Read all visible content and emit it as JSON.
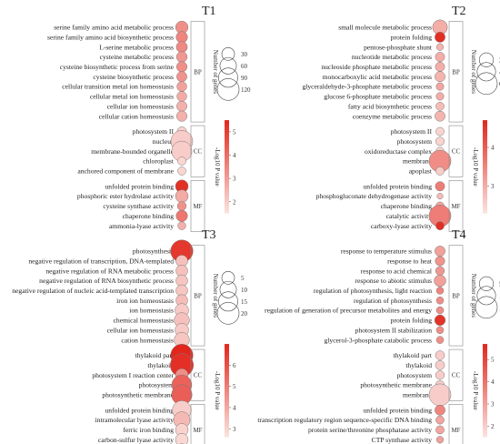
{
  "chart_data": [
    {
      "type": "scatter",
      "title": "T1",
      "size_legend_title": "Number of genes",
      "size_ticks": [
        30,
        60,
        90,
        120
      ],
      "size_max": 120,
      "color_legend_title": "-Log10 P value",
      "color_ticks": [
        2,
        3,
        4,
        5
      ],
      "color_range": [
        1.5,
        5.5
      ],
      "groups": [
        {
          "label": "BP",
          "terms": [
            {
              "term": "serine family amino acid metabolic process",
              "genes": 28,
              "log10p": 3.3
            },
            {
              "term": "serine family amino acid biosynthetic process",
              "genes": 22,
              "log10p": 3.5
            },
            {
              "term": "L-serine metabolic process",
              "genes": 20,
              "log10p": 3.4
            },
            {
              "term": "cysteine metabolic process",
              "genes": 18,
              "log10p": 3.1
            },
            {
              "term": "cysteine biosynthetic process from serine",
              "genes": 17,
              "log10p": 3.3
            },
            {
              "term": "cysteine biosynthetic process",
              "genes": 16,
              "log10p": 3.2
            },
            {
              "term": "cellular transition metal ion homeostasis",
              "genes": 14,
              "log10p": 2.9
            },
            {
              "term": "cellular metal ion homeostasis",
              "genes": 14,
              "log10p": 2.7
            },
            {
              "term": "cellular ion homeostasis",
              "genes": 16,
              "log10p": 2.6
            },
            {
              "term": "cellular cation homeostasis",
              "genes": 17,
              "log10p": 2.6
            }
          ]
        },
        {
          "label": "CC",
          "terms": [
            {
              "term": "photosystem II",
              "genes": 12,
              "log10p": 1.9
            },
            {
              "term": "nucleus",
              "genes": 120,
              "log10p": 2.0
            },
            {
              "term": "membrane-bounded organelle",
              "genes": 100,
              "log10p": 2.0
            },
            {
              "term": "chloroplast",
              "genes": 8,
              "log10p": 1.8
            },
            {
              "term": "anchored component of membrane",
              "genes": 8,
              "log10p": 1.8
            }
          ]
        },
        {
          "label": "MF",
          "terms": [
            {
              "term": "unfolded protein binding",
              "genes": 30,
              "log10p": 5.3
            },
            {
              "term": "phosphoric ester hydrolase activity",
              "genes": 30,
              "log10p": 2.7
            },
            {
              "term": "cysteine synthase activity",
              "genes": 10,
              "log10p": 3.2
            },
            {
              "term": "chaperone binding",
              "genes": 22,
              "log10p": 3.8
            },
            {
              "term": "ammonia-lyase activity",
              "genes": 7,
              "log10p": 2.6
            }
          ]
        }
      ]
    },
    {
      "type": "scatter",
      "title": "T2",
      "size_legend_title": "Number of genes",
      "size_ticks": [
        200,
        400,
        600
      ],
      "size_max": 600,
      "color_legend_title": "-Log10 P value",
      "color_ticks": [
        3,
        4
      ],
      "color_range": [
        2.3,
        4.7
      ],
      "groups": [
        {
          "label": "BP",
          "terms": [
            {
              "term": "small molecule metabolic process",
              "genes": 230,
              "log10p": 3.0
            },
            {
              "term": "protein folding",
              "genes": 80,
              "log10p": 4.6
            },
            {
              "term": "pentose-phosphate shunt",
              "genes": 20,
              "log10p": 2.9
            },
            {
              "term": "nucleotide metabolic process",
              "genes": 60,
              "log10p": 3.0
            },
            {
              "term": "nucleoside phosphate metabolic process",
              "genes": 60,
              "log10p": 3.0
            },
            {
              "term": "monocarboxylic acid metabolic process",
              "genes": 80,
              "log10p": 2.9
            },
            {
              "term": "glyceraldehyde-3-phosphate metabolic process",
              "genes": 30,
              "log10p": 3.1
            },
            {
              "term": "glucose 6-phosphate metabolic process",
              "genes": 30,
              "log10p": 3.0
            },
            {
              "term": "fatty acid biosynthetic process",
              "genes": 40,
              "log10p": 2.8
            },
            {
              "term": "coenzyme metabolic process",
              "genes": 80,
              "log10p": 2.9
            }
          ]
        },
        {
          "label": "CC",
          "terms": [
            {
              "term": "photosystem II",
              "genes": 40,
              "log10p": 2.5
            },
            {
              "term": "photosystem",
              "genes": 45,
              "log10p": 2.5
            },
            {
              "term": "oxidoreductase complex",
              "genes": 35,
              "log10p": 2.5
            },
            {
              "term": "membrane",
              "genes": 600,
              "log10p": 3.4
            },
            {
              "term": "apoplast",
              "genes": 40,
              "log10p": 2.6
            }
          ]
        },
        {
          "label": "MF",
          "terms": [
            {
              "term": "unfolded protein binding",
              "genes": 60,
              "log10p": 3.6
            },
            {
              "term": "phosphogluconate dehydrogenase activity",
              "genes": 10,
              "log10p": 2.8
            },
            {
              "term": "chaperone binding",
              "genes": 40,
              "log10p": 3.1
            },
            {
              "term": "catalytic activity",
              "genes": 600,
              "log10p": 3.6
            },
            {
              "term": "carboxy-lyase activity",
              "genes": 40,
              "log10p": 4.6
            }
          ]
        }
      ]
    },
    {
      "type": "scatter",
      "title": "T3",
      "size_legend_title": "Number of genes",
      "size_ticks": [
        5,
        10,
        15,
        20
      ],
      "size_max": 20,
      "color_legend_title": "-Log10 P value",
      "color_ticks": [
        3,
        4,
        5,
        6
      ],
      "color_range": [
        2.6,
        7.0
      ],
      "groups": [
        {
          "label": "BP",
          "terms": [
            {
              "term": "photosynthesis",
              "genes": 21,
              "log10p": 6.6
            },
            {
              "term": "negative regulation of transcription, DNA-templated",
              "genes": 4,
              "log10p": 3.4
            },
            {
              "term": "negative regulation of RNA metabolic process",
              "genes": 4,
              "log10p": 3.4
            },
            {
              "term": "negative regulation of RNA biosynthetic process",
              "genes": 4,
              "log10p": 3.3
            },
            {
              "term": "negative regulation of nucleic acid-templated transcription",
              "genes": 4,
              "log10p": 3.3
            },
            {
              "term": "iron ion homeostasis",
              "genes": 4,
              "log10p": 3.5
            },
            {
              "term": "ion homeostasis",
              "genes": 6,
              "log10p": 3.2
            },
            {
              "term": "chemical homeostasis",
              "genes": 8,
              "log10p": 3.4
            },
            {
              "term": "cellular ion homeostasis",
              "genes": 6,
              "log10p": 3.2
            },
            {
              "term": "cation homeostasis",
              "genes": 8,
              "log10p": 3.3
            }
          ]
        },
        {
          "label": "CC",
          "terms": [
            {
              "term": "thylakoid part",
              "genes": 21,
              "log10p": 7.0
            },
            {
              "term": "thylakoid",
              "genes": 23,
              "log10p": 6.8
            },
            {
              "term": "photosystem I reaction center",
              "genes": 5,
              "log10p": 4.6
            },
            {
              "term": "photosystem",
              "genes": 16,
              "log10p": 5.6
            },
            {
              "term": "photosynthetic membrane",
              "genes": 17,
              "log10p": 5.7
            }
          ]
        },
        {
          "label": "MF",
          "terms": [
            {
              "term": "unfolded protein binding",
              "genes": 14,
              "log10p": 3.1
            },
            {
              "term": "intramolecular lyase activity",
              "genes": 10,
              "log10p": 3.6
            },
            {
              "term": "ferric iron binding",
              "genes": 5,
              "log10p": 3.0
            },
            {
              "term": "carbon-sulfur lyase activity",
              "genes": 5,
              "log10p": 2.9
            },
            {
              "term": "ammonia-lyase activity",
              "genes": 4,
              "log10p": 2.9
            }
          ]
        }
      ]
    },
    {
      "type": "scatter",
      "title": "T4",
      "size_legend_title": "Number of genes",
      "size_ticks": [
        50,
        100,
        150
      ],
      "size_max": 150,
      "color_legend_title": "-Log10 P value",
      "color_ticks": [
        2,
        3,
        4,
        5
      ],
      "color_range": [
        1.5,
        5.7
      ],
      "groups": [
        {
          "label": "BP",
          "terms": [
            {
              "term": "response to temperature stimulus",
              "genes": 20,
              "log10p": 3.0
            },
            {
              "term": "response to heat",
              "genes": 16,
              "log10p": 3.3
            },
            {
              "term": "response to acid chemical",
              "genes": 12,
              "log10p": 3.2
            },
            {
              "term": "response to abiotic stimulus",
              "genes": 30,
              "log10p": 3.0
            },
            {
              "term": "regulation of photosynthesis, light reaction",
              "genes": 6,
              "log10p": 3.6
            },
            {
              "term": "regulation of photosynthesis",
              "genes": 6,
              "log10p": 3.4
            },
            {
              "term": "regulation of generation of precursor metabolites and energy",
              "genes": 6,
              "log10p": 3.4
            },
            {
              "term": "protein folding",
              "genes": 22,
              "log10p": 5.4
            },
            {
              "term": "photosystem II stabilization",
              "genes": 6,
              "log10p": 3.4
            },
            {
              "term": "glycerol-3-phosphate catabolic process",
              "genes": 6,
              "log10p": 3.4
            }
          ]
        },
        {
          "label": "CC",
          "terms": [
            {
              "term": "thylakoid part",
              "genes": 14,
              "log10p": 2.0
            },
            {
              "term": "thylakoid",
              "genes": 14,
              "log10p": 2.0
            },
            {
              "term": "photosystem",
              "genes": 12,
              "log10p": 2.0
            },
            {
              "term": "photosynthetic membrane",
              "genes": 12,
              "log10p": 2.0
            },
            {
              "term": "membrane",
              "genes": 150,
              "log10p": 2.0
            }
          ]
        },
        {
          "label": "MF",
          "terms": [
            {
              "term": "unfolded protein binding",
              "genes": 20,
              "log10p": 3.6
            },
            {
              "term": "transcription regulatory region sequence-specific DNA binding",
              "genes": 10,
              "log10p": 2.9
            },
            {
              "term": "protein serine/threonine phosphatase activity",
              "genes": 10,
              "log10p": 2.9
            },
            {
              "term": "CTP synthase activity",
              "genes": 5,
              "log10p": 3.0
            },
            {
              "term": "chaperone binding",
              "genes": 12,
              "log10p": 2.9
            }
          ]
        }
      ]
    }
  ]
}
